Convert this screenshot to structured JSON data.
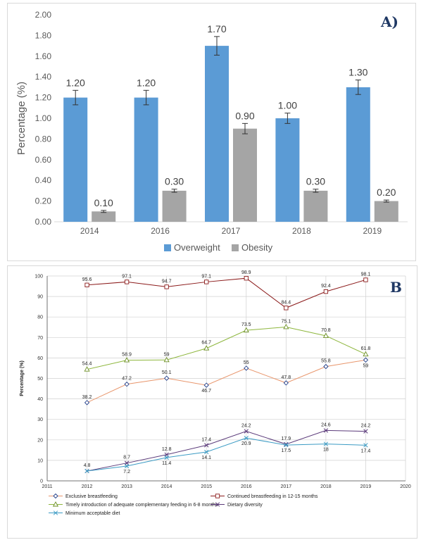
{
  "chart_data": [
    {
      "type": "bar",
      "panel_label": "A)",
      "categories": [
        "2014",
        "2016",
        "2017",
        "2018",
        "2019"
      ],
      "series": [
        {
          "name": "Overweight",
          "color": "#5b9bd5",
          "values": [
            1.2,
            1.2,
            1.7,
            1.0,
            1.3
          ],
          "labels": [
            "1.20",
            "1.20",
            "1.70",
            "1.00",
            "1.30"
          ],
          "errors": [
            0.07,
            0.07,
            0.09,
            0.05,
            0.07
          ]
        },
        {
          "name": "Obesity",
          "color": "#a5a5a5",
          "values": [
            0.1,
            0.3,
            0.9,
            0.3,
            0.2
          ],
          "labels": [
            "0.10",
            "0.30",
            "0.90",
            "0.30",
            "0.20"
          ],
          "errors": [
            0.01,
            0.015,
            0.05,
            0.015,
            0.01
          ]
        }
      ],
      "ylabel": "Percentage (%)",
      "ylim": [
        0,
        2
      ],
      "yticks": [
        "0.00",
        "0.20",
        "0.40",
        "0.60",
        "0.80",
        "1.00",
        "1.20",
        "1.40",
        "1.60",
        "1.80",
        "2.00"
      ],
      "grid": false,
      "legend": "bottom"
    },
    {
      "type": "line",
      "panel_label": "B",
      "x": [
        2012,
        2013,
        2014,
        2015,
        2016,
        2017,
        2018,
        2019
      ],
      "xticks": [
        "2011",
        "2012",
        "2013",
        "2014",
        "2015",
        "2016",
        "2017",
        "2018",
        "2019",
        "2020"
      ],
      "xlim": [
        2011,
        2020
      ],
      "ylabel": "Percentage (%)",
      "ylim": [
        0,
        100
      ],
      "yticks": [
        "0",
        "10",
        "20",
        "30",
        "40",
        "50",
        "60",
        "70",
        "80",
        "90",
        "100"
      ],
      "grid": true,
      "legend": "bottom",
      "series": [
        {
          "name": "Exclusive breastfeeding",
          "color": "#e8956b",
          "marker_color": "#1f3c88",
          "marker": "diamond",
          "values": [
            38.2,
            47.2,
            50.1,
            46.7,
            55,
            47.8,
            55.8,
            59
          ],
          "labels": [
            "38.2",
            "47.2",
            "50.1",
            "46.7",
            "55",
            "47.8",
            "55.8",
            "59"
          ]
        },
        {
          "name": "Continued breastfeeding in 12-15 months",
          "color": "#8b1a1a",
          "marker_color": "#8b1a1a",
          "marker": "square",
          "values": [
            95.6,
            97.1,
            94.7,
            97.1,
            98.9,
            84.4,
            92.4,
            98.1
          ],
          "labels": [
            "95.6",
            "97.1",
            "94.7",
            "97.1",
            "98.9",
            "84.4",
            "92.4",
            "98.1"
          ]
        },
        {
          "name": "Timely introduction of adequate complementary feeding in 6-8 months",
          "color": "#8db63c",
          "marker_color": "#6b8e23",
          "marker": "triangle",
          "values": [
            54.4,
            58.9,
            59,
            64.7,
            73.5,
            75.1,
            70.8,
            61.8
          ],
          "labels": [
            "54.4",
            "58.9",
            "59",
            "64.7",
            "73.5",
            "75.1",
            "70.8",
            "61.8"
          ]
        },
        {
          "name": "Dietary diversity",
          "color": "#5b3a7a",
          "marker_color": "#5b3a7a",
          "marker": "x",
          "values": [
            4.8,
            8.7,
            12.8,
            17.4,
            24.2,
            17.9,
            24.6,
            24.2
          ],
          "labels": [
            "4.8",
            "8.7",
            "12.8",
            "17.4",
            "24.2",
            "17.9",
            "24.6",
            "24.2"
          ]
        },
        {
          "name": "Minimum acceptable diet",
          "color": "#3b9bc4",
          "marker_color": "#3b9bc4",
          "marker": "x",
          "values": [
            4.8,
            7.2,
            11.4,
            14.1,
            20.9,
            17.5,
            18,
            17.4
          ],
          "labels": [
            "",
            "7.2",
            "11.4",
            "14.1",
            "20.9",
            "17.5",
            "18",
            "17.4"
          ]
        }
      ]
    }
  ]
}
